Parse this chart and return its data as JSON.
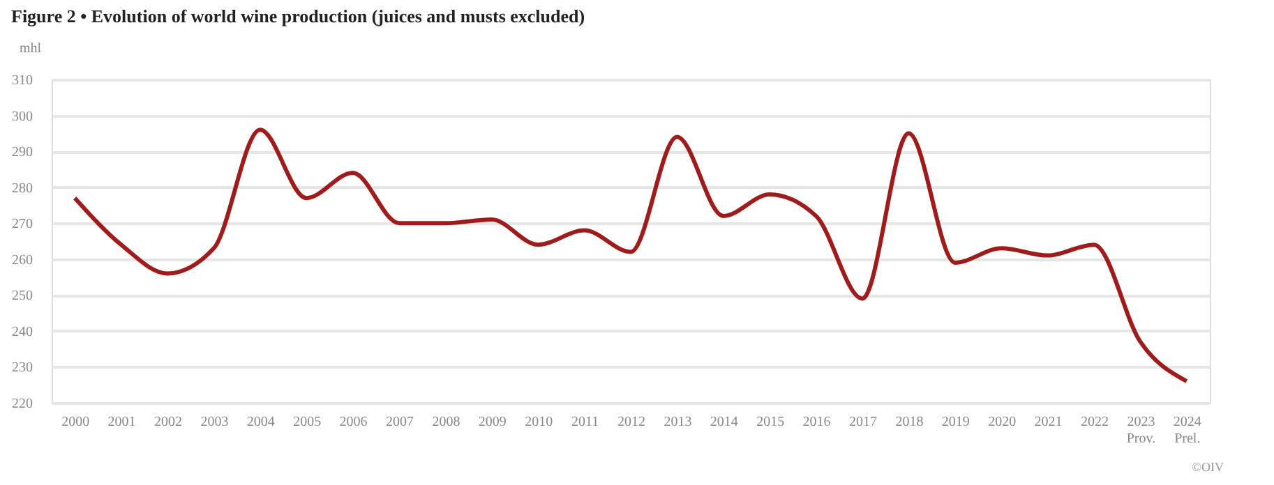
{
  "chart_data": {
    "type": "line",
    "title": "Figure 2 • Evolution of world wine production (juices and musts excluded)",
    "ylabel": "mhl",
    "categories": [
      "2000",
      "2001",
      "2002",
      "2003",
      "2004",
      "2005",
      "2006",
      "2007",
      "2008",
      "2009",
      "2010",
      "2011",
      "2012",
      "2013",
      "2014",
      "2015",
      "2016",
      "2017",
      "2018",
      "2019",
      "2020",
      "2021",
      "2022",
      "2023\nProv.",
      "2024\nPrel."
    ],
    "series": [
      {
        "color": "#a01c1c",
        "values": [
          277,
          264,
          256,
          263,
          296,
          277,
          284,
          270,
          270,
          271,
          264,
          268,
          262,
          294,
          272,
          278,
          272,
          249,
          295,
          259,
          263,
          261,
          264,
          237,
          226
        ]
      }
    ],
    "ylim": [
      220,
      310
    ],
    "yticks": [
      220,
      230,
      240,
      250,
      260,
      270,
      280,
      290,
      300,
      310
    ],
    "grid": "y",
    "marker": "none",
    "line_style": "solid",
    "annotations": [
      "©OIV"
    ]
  }
}
